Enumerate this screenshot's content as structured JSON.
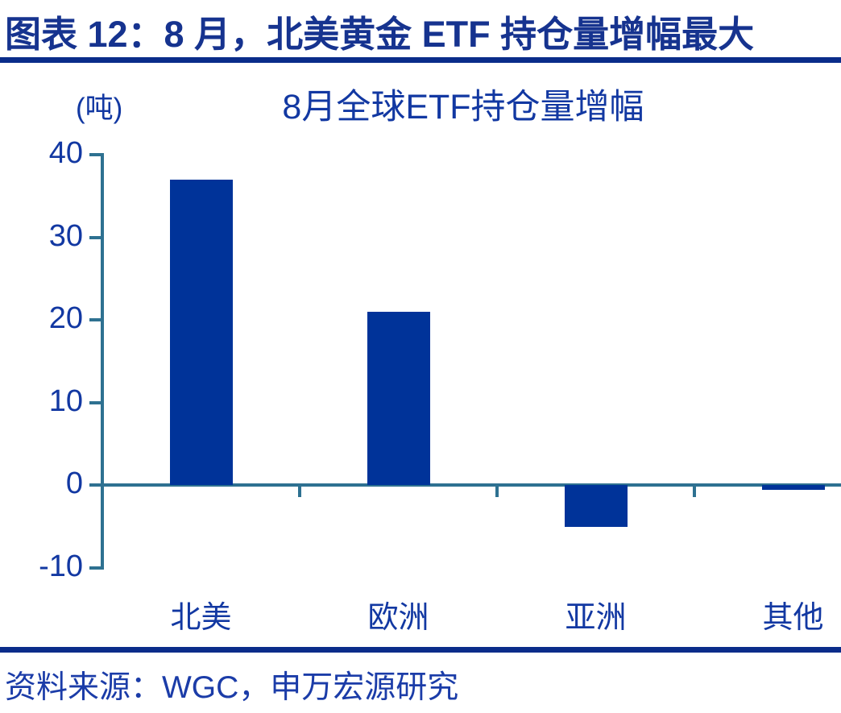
{
  "page": {
    "title": "图表 12：8 月，北美黄金 ETF 持仓量增幅最大",
    "source": "资料来源：WGC，申万宏源研究"
  },
  "chart_data": {
    "type": "bar",
    "title": "8月全球ETF持仓量增幅",
    "unit_label": "(吨)",
    "categories": [
      "北美",
      "欧洲",
      "亚洲",
      "其他"
    ],
    "values": [
      37,
      21,
      -5,
      -0.5
    ],
    "xlabel": "",
    "ylabel": "吨",
    "ylim": [
      -10,
      40
    ],
    "yticks": [
      40,
      30,
      20,
      10,
      0,
      -10
    ],
    "grid": false,
    "legend": "none",
    "bar_color": "#003399",
    "axis_color": "#2E7191",
    "label_color": "#1238A2",
    "title_color": "#16338F",
    "rule_color": "#0A2C8A"
  }
}
